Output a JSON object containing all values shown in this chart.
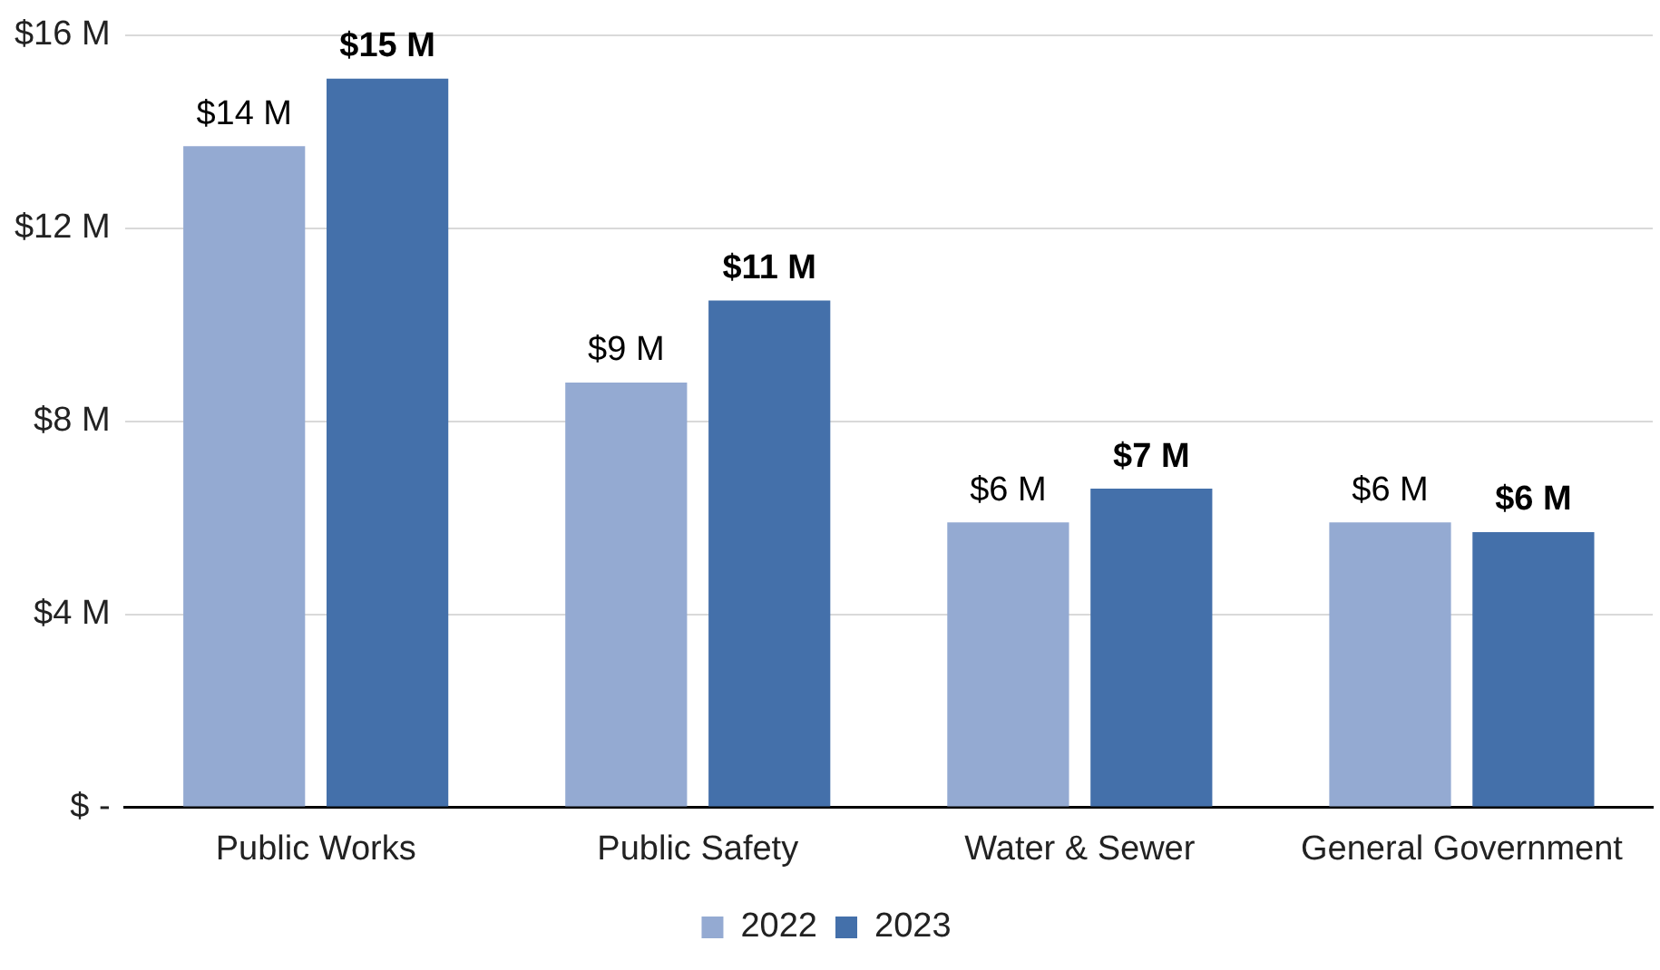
{
  "chart_data": {
    "type": "bar",
    "categories": [
      "Public Works",
      "Public Safety",
      "Water & Sewer",
      "General Government"
    ],
    "series": [
      {
        "name": "2022",
        "color": "#94aad2",
        "values": [
          13.7,
          8.8,
          5.9,
          5.9
        ],
        "value_labels": [
          "$14 M",
          "$9 M",
          "$6 M",
          "$6 M"
        ]
      },
      {
        "name": "2023",
        "color": "#4470aa",
        "values": [
          15.1,
          10.5,
          6.6,
          5.7
        ],
        "value_labels": [
          "$15 M",
          "$11 M",
          "$7 M",
          "$6 M"
        ]
      }
    ],
    "ylim": [
      0,
      16
    ],
    "yticks": [
      {
        "value": 0,
        "label": "$ -"
      },
      {
        "value": 4,
        "label": "$4 M"
      },
      {
        "value": 8,
        "label": "$8 M"
      },
      {
        "value": 12,
        "label": "$12 M"
      },
      {
        "value": 16,
        "label": "$16 M"
      }
    ],
    "grid": "y",
    "legend": "bottom"
  }
}
